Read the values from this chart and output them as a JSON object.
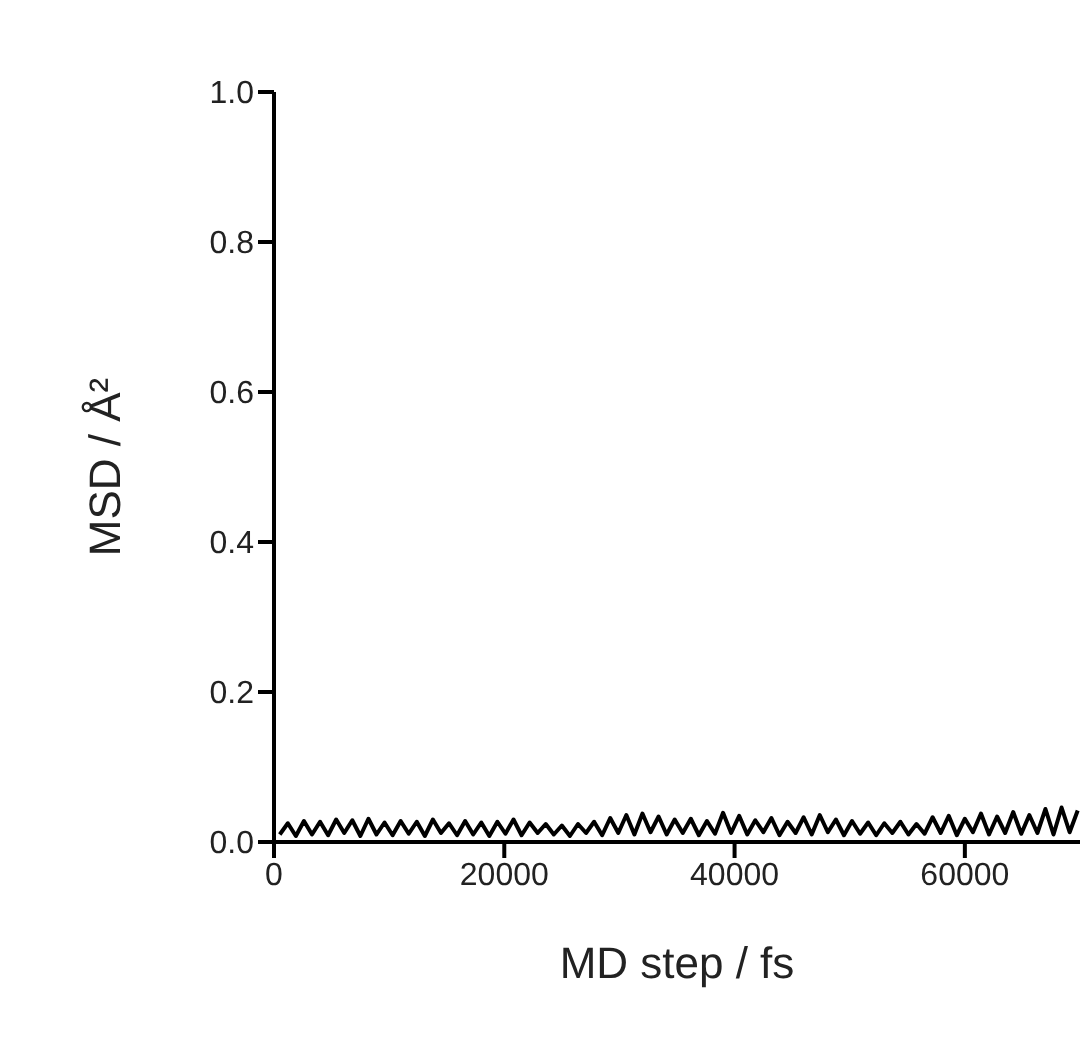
{
  "chart_data": {
    "type": "line",
    "xlabel": "MD step / fs",
    "ylabel": "MSD / Å²",
    "xlim": [
      0,
      70000
    ],
    "ylim": [
      0,
      1.0
    ],
    "xticks": [
      0,
      20000,
      40000,
      60000
    ],
    "yticks": [
      {
        "value": 0,
        "label": "0.0"
      },
      0.2,
      0.4,
      0.6,
      0.8,
      {
        "value": 1,
        "label": "1.0"
      }
    ],
    "marker": "none",
    "line_style": "solid",
    "x": [
      500,
      1200,
      1900,
      2600,
      3300,
      4000,
      4700,
      5400,
      6100,
      6800,
      7500,
      8200,
      8900,
      9600,
      10300,
      11000,
      11700,
      12400,
      13100,
      13800,
      14500,
      15200,
      15900,
      16600,
      17300,
      18000,
      18700,
      19400,
      20100,
      20800,
      21500,
      22200,
      22900,
      23600,
      24300,
      25000,
      25700,
      26400,
      27100,
      27800,
      28500,
      29200,
      29900,
      30600,
      31300,
      32000,
      32700,
      33400,
      34100,
      34800,
      35500,
      36200,
      36900,
      37600,
      38300,
      39000,
      39700,
      40400,
      41100,
      41800,
      42500,
      43200,
      43900,
      44600,
      45300,
      46000,
      46700,
      47400,
      48100,
      48800,
      49500,
      50200,
      50900,
      51600,
      52300,
      53000,
      53700,
      54400,
      55100,
      55800,
      56500,
      57200,
      57900,
      58600,
      59300,
      60000,
      60700,
      61400,
      62100,
      62800,
      63500,
      64200,
      64900,
      65600,
      66300,
      67000,
      67700,
      68400,
      69100,
      69800
    ],
    "series": [
      {
        "color": "#000000",
        "values": [
          0.01,
          0.025,
          0.008,
          0.028,
          0.01,
          0.027,
          0.009,
          0.03,
          0.012,
          0.029,
          0.008,
          0.031,
          0.01,
          0.026,
          0.009,
          0.028,
          0.011,
          0.027,
          0.008,
          0.03,
          0.012,
          0.025,
          0.009,
          0.028,
          0.01,
          0.026,
          0.008,
          0.027,
          0.011,
          0.03,
          0.009,
          0.026,
          0.012,
          0.024,
          0.01,
          0.022,
          0.008,
          0.024,
          0.012,
          0.027,
          0.009,
          0.032,
          0.012,
          0.036,
          0.01,
          0.038,
          0.013,
          0.034,
          0.01,
          0.03,
          0.012,
          0.031,
          0.009,
          0.028,
          0.011,
          0.039,
          0.012,
          0.035,
          0.01,
          0.029,
          0.013,
          0.032,
          0.009,
          0.027,
          0.012,
          0.033,
          0.01,
          0.036,
          0.013,
          0.03,
          0.009,
          0.028,
          0.011,
          0.026,
          0.009,
          0.025,
          0.012,
          0.027,
          0.01,
          0.024,
          0.011,
          0.033,
          0.012,
          0.035,
          0.009,
          0.031,
          0.013,
          0.038,
          0.01,
          0.034,
          0.012,
          0.04,
          0.011,
          0.036,
          0.012,
          0.044,
          0.01,
          0.046,
          0.013,
          0.042
        ]
      }
    ]
  }
}
